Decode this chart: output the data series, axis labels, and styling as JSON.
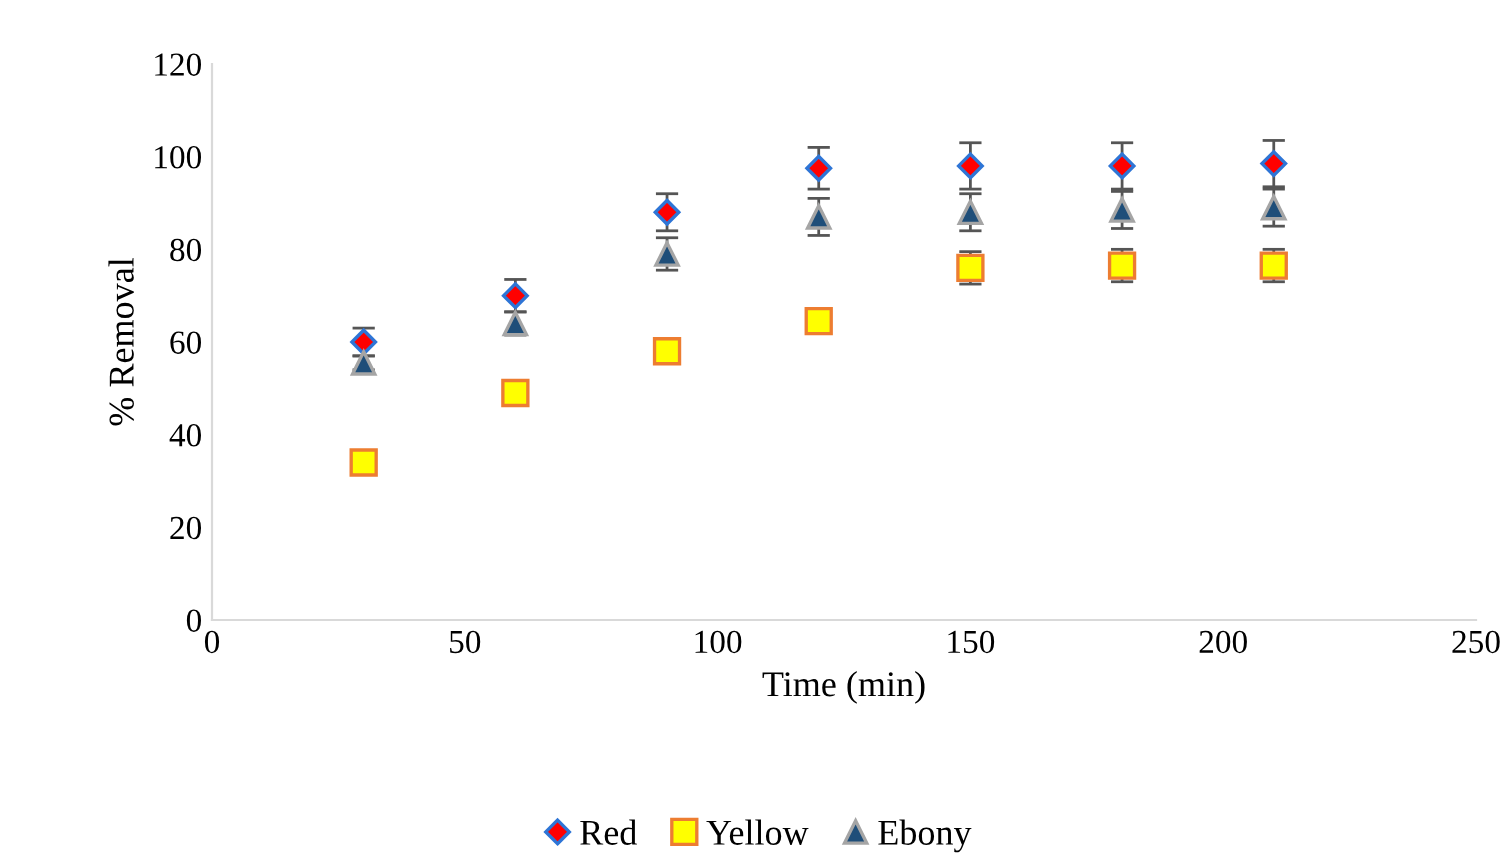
{
  "chart_data": {
    "type": "scatter",
    "xlabel": "Time (min)",
    "ylabel": "% Removal",
    "x": [
      30,
      60,
      90,
      120,
      150,
      180,
      210
    ],
    "series": [
      {
        "name": "Red",
        "color": "#ff0000",
        "marker": "diamond",
        "values": [
          60,
          70,
          88,
          97.5,
          98,
          98,
          98.5
        ],
        "errors": [
          3,
          3.5,
          4,
          4.5,
          5,
          5,
          5
        ]
      },
      {
        "name": "Yellow",
        "color": "#ffff00",
        "marker": "square",
        "values": [
          34,
          49,
          58,
          64.5,
          76,
          76.5,
          76.5
        ],
        "errors": [
          null,
          null,
          null,
          null,
          3.5,
          3.5,
          3.5
        ]
      },
      {
        "name": "Ebony",
        "color": "#1f4e79",
        "marker": "triangle",
        "values": [
          55.5,
          64,
          79,
          87,
          88,
          88.5,
          89
        ],
        "errors": [
          1.5,
          2.5,
          3.5,
          4,
          4,
          4,
          4
        ]
      }
    ],
    "xlim": [
      0,
      250
    ],
    "xticks": [
      0,
      50,
      100,
      150,
      200,
      250
    ],
    "ylim": [
      0,
      120
    ],
    "yticks": [
      0,
      20,
      40,
      60,
      80,
      100,
      120
    ],
    "grid": false,
    "legend": "bottom"
  }
}
